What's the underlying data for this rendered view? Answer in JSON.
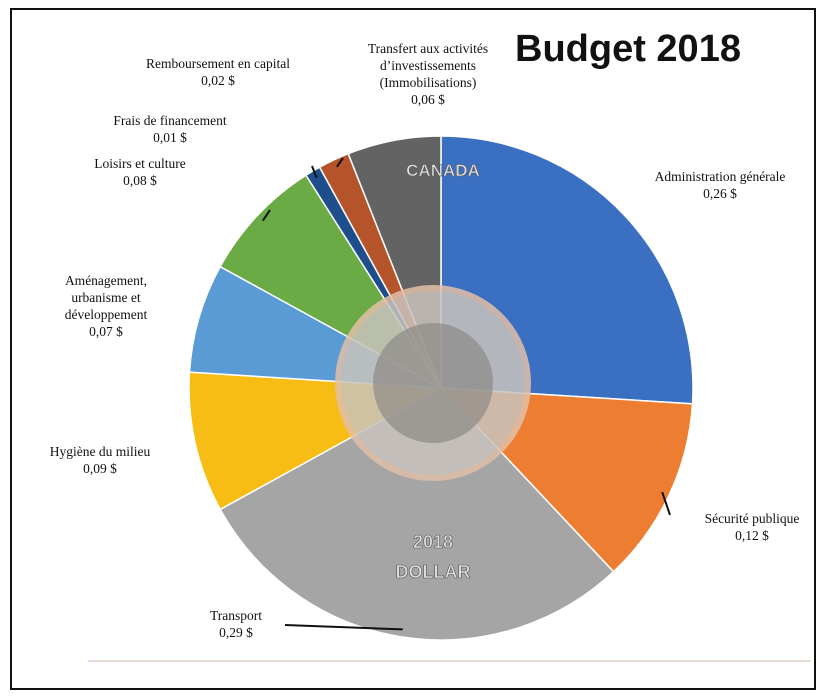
{
  "chart_data": {
    "type": "pie",
    "title": "Budget 2018",
    "categories": [
      "Administration générale",
      "Sécurité publique",
      "Transport",
      "Hygiène du milieu",
      "Aménagement, urbanisme et développement",
      "Loisirs et culture",
      "Frais de financement",
      "Remboursement en capital",
      "Transfert aux activités d’investissements (Immobilisations)"
    ],
    "values": [
      0.26,
      0.12,
      0.29,
      0.09,
      0.07,
      0.08,
      0.01,
      0.02,
      0.06
    ],
    "value_labels": [
      "0,26 $",
      "0,12 $",
      "0,29 $",
      "0,09 $",
      "0,07 $",
      "0,08 $",
      "0,01 $",
      "0,02 $",
      "0,06 $"
    ],
    "colors": [
      "#3b6fc2",
      "#ed7d31",
      "#a5a5a5",
      "#f7bd14",
      "#5b9bd5",
      "#6aab45",
      "#1f4e8c",
      "#b5532a",
      "#636363"
    ]
  },
  "coin_text": [
    "CANADA",
    "2018",
    "DOLLAR"
  ]
}
